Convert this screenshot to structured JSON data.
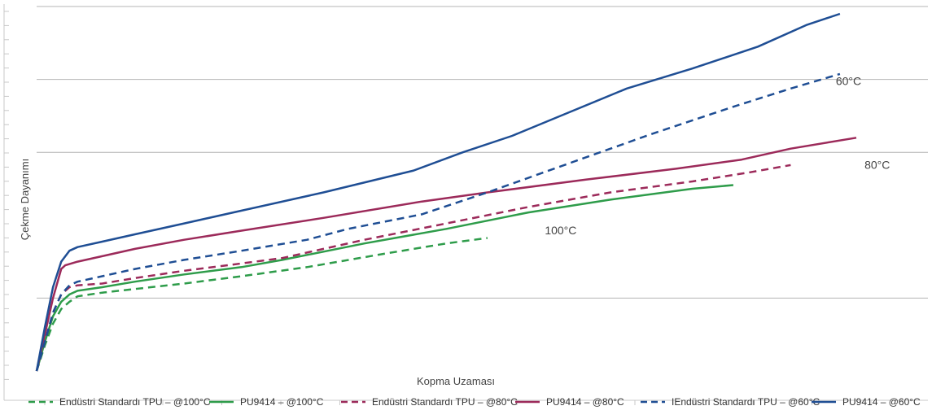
{
  "chart_data": {
    "type": "line",
    "title": "",
    "xlabel": "Kopma Uzaması",
    "ylabel": "Çekme Dayanımı",
    "x_ticks_labeled": false,
    "y_ticks_labeled": false,
    "xlim": [
      0,
      100
    ],
    "ylim": [
      0,
      100
    ],
    "grid": "horizontal",
    "legend_position": "bottom",
    "series": [
      {
        "name": "Endüstri Standardı TPU – @100°C",
        "color": "#2e9c4a",
        "dashed": true,
        "x": [
          0,
          1,
          2,
          3,
          4,
          5,
          8,
          12,
          18,
          25,
          33,
          42,
          50,
          55
        ],
        "y": [
          0,
          7,
          13,
          17,
          19,
          20.5,
          21.5,
          22.5,
          24,
          26,
          28.5,
          32,
          35,
          36.5
        ]
      },
      {
        "name": "PU9414 – @100°C",
        "color": "#2e9c4a",
        "dashed": false,
        "x": [
          0,
          1,
          2,
          3,
          4,
          5,
          8,
          12,
          18,
          25,
          30,
          40,
          50,
          60,
          70,
          80,
          85
        ],
        "y": [
          0,
          8,
          15,
          19,
          21,
          22,
          23,
          24.5,
          26.5,
          28.5,
          30.5,
          35,
          39,
          43.5,
          47,
          50,
          51
        ]
      },
      {
        "name": "Endüstri Standardı TPU – @80°C",
        "color": "#9c2a5a",
        "dashed": true,
        "x": [
          0,
          1,
          2,
          3,
          4,
          5,
          8,
          12,
          18,
          25,
          30,
          40,
          50,
          60,
          70,
          80,
          87,
          92
        ],
        "y": [
          0,
          8,
          16,
          21,
          23,
          23.5,
          24,
          25.5,
          27.5,
          29.5,
          31,
          36,
          40.5,
          45,
          49,
          52,
          54.5,
          56.5
        ]
      },
      {
        "name": "PU9414 – @80°C",
        "color": "#9c2a5a",
        "dashed": false,
        "x": [
          0,
          1,
          2,
          3,
          3.5,
          5,
          8,
          12,
          18,
          25,
          35,
          47,
          55,
          67,
          78,
          86,
          92,
          100
        ],
        "y": [
          0,
          10,
          20,
          28,
          29,
          30,
          31.5,
          33.5,
          36,
          38.5,
          42,
          46.5,
          49,
          52.5,
          55.5,
          58,
          61,
          64
        ]
      },
      {
        "name": "IEndüstri Standardı TPU – @60°C",
        "color": "#1f4e94",
        "dashed": true,
        "x": [
          0,
          1,
          2,
          3,
          4,
          5,
          8,
          12,
          18,
          25,
          33,
          38,
          47,
          55,
          65,
          75,
          85,
          92,
          98
        ],
        "y": [
          0,
          8,
          16,
          21,
          23.5,
          24.5,
          26,
          28,
          30.5,
          33,
          36,
          39,
          43,
          49,
          57,
          65,
          72.5,
          77.5,
          81.5
        ]
      },
      {
        "name": "PU9414 – @60°C",
        "color": "#1f4e94",
        "dashed": false,
        "x": [
          0,
          1,
          2,
          3,
          4,
          5,
          8,
          12,
          18,
          25,
          35,
          46,
          52,
          58,
          65,
          72,
          80,
          88,
          94,
          98
        ],
        "y": [
          0,
          12,
          23,
          30,
          33,
          34,
          35.5,
          37.5,
          40.5,
          44,
          49,
          55,
          60,
          64.5,
          71,
          77.5,
          83,
          89,
          95,
          98
        ]
      }
    ],
    "annotations": [
      {
        "text": "60°C",
        "x": 97.5,
        "y": 78.5
      },
      {
        "text": "80°C",
        "x": 101,
        "y": 55.5
      },
      {
        "text": "100°C",
        "x": 62,
        "y": 37.5
      }
    ]
  }
}
